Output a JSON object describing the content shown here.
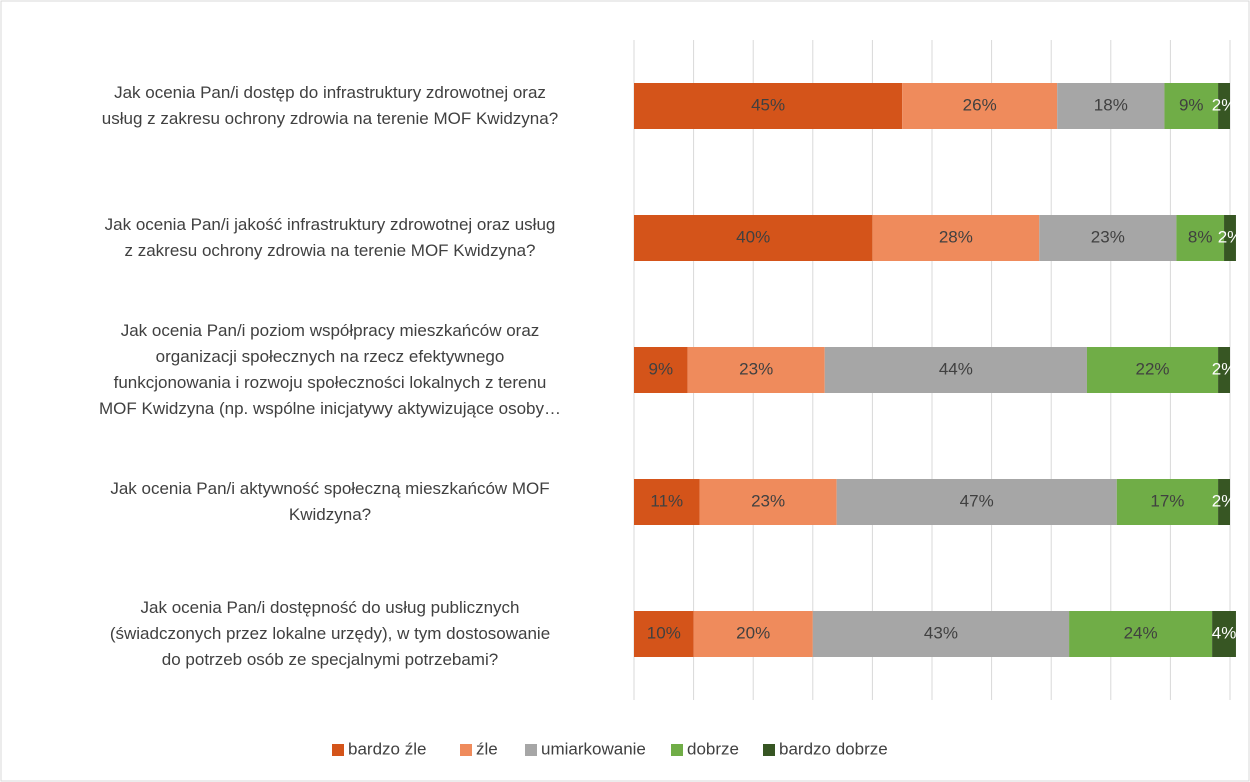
{
  "chart_data": {
    "type": "stacked_barh",
    "categories": [
      "Jak ocenia Pan/i dostęp do infrastruktury zdrowotnej oraz\nusług z zakresu ochrony zdrowia na terenie MOF Kwidzyna?",
      "Jak ocenia Pan/i jakość infrastruktury zdrowotnej oraz usług\nz zakresu ochrony zdrowia na terenie MOF Kwidzyna?",
      "Jak ocenia Pan/i poziom współpracy mieszkańców oraz\norganizacji społecznych na rzecz efektywnego\nfunkcjonowania i rozwoju społeczności lokalnych z terenu\nMOF Kwidzyna (np. wspólne inicjatywy aktywizujące osoby…",
      "Jak ocenia Pan/i aktywność społeczną mieszkańców MOF\nKwidzyna?",
      "Jak ocenia Pan/i dostępność do usług publicznych\n(świadczonych przez lokalne urzędy), w tym dostosowanie\ndo potrzeb osób ze specjalnymi potrzebami?"
    ],
    "series": [
      {
        "name": "bardzo źle",
        "color": "#d4541a",
        "values": [
          45,
          40,
          9,
          11,
          10
        ],
        "value_labels": [
          "45%",
          "40%",
          "9%",
          "11%",
          "10%"
        ]
      },
      {
        "name": "źle",
        "color": "#ef8b5c",
        "values": [
          26,
          28,
          23,
          23,
          20
        ],
        "value_labels": [
          "26%",
          "28%",
          "23%",
          "23%",
          "20%"
        ]
      },
      {
        "name": "umiarkowanie",
        "color": "#a6a6a6",
        "values": [
          18,
          23,
          44,
          47,
          43
        ],
        "value_labels": [
          "18%",
          "23%",
          "44%",
          "47%",
          "43%"
        ]
      },
      {
        "name": "dobrze",
        "color": "#70ad47",
        "values": [
          9,
          8,
          22,
          17,
          24
        ],
        "value_labels": [
          "9%",
          "8%",
          "22%",
          "17%",
          "24%"
        ]
      },
      {
        "name": "bardzo dobrze",
        "color": "#375623",
        "values": [
          2,
          2,
          2,
          2,
          4
        ],
        "value_labels": [
          "2%",
          "2%",
          "2%",
          "2%",
          "4%"
        ]
      }
    ],
    "xlim": [
      0,
      100
    ],
    "xticks": [
      0,
      10,
      20,
      30,
      40,
      50,
      60,
      70,
      80,
      90,
      100
    ],
    "grid": true,
    "legend": "bottom"
  }
}
